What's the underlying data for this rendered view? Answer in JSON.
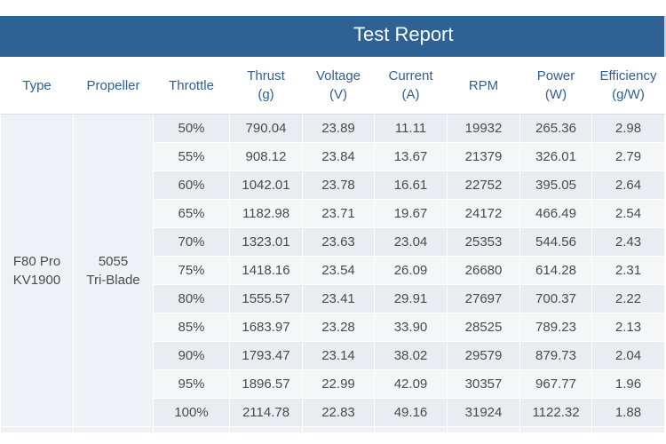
{
  "report": {
    "title": "Test Report"
  },
  "headers": [
    {
      "line1": "Type",
      "line2": ""
    },
    {
      "line1": "Propeller",
      "line2": ""
    },
    {
      "line1": "Throttle",
      "line2": ""
    },
    {
      "line1": "Thrust",
      "line2": "(g)"
    },
    {
      "line1": "Voltage",
      "line2": "(V)"
    },
    {
      "line1": "Current",
      "line2": "(A)"
    },
    {
      "line1": "RPM",
      "line2": ""
    },
    {
      "line1": "Power",
      "line2": "(W)"
    },
    {
      "line1": "Efficiency",
      "line2": "(g/W)"
    }
  ],
  "motor": {
    "type_line1": "F80 Pro",
    "type_line2": "KV1900",
    "prop_line1": "5055",
    "prop_line2": "Tri-Blade"
  },
  "rows": [
    {
      "throttle": "50%",
      "thrust": "790.04",
      "voltage": "23.89",
      "current": "11.11",
      "rpm": "19932",
      "power": "265.36",
      "efficiency": "2.98"
    },
    {
      "throttle": "55%",
      "thrust": "908.12",
      "voltage": "23.84",
      "current": "13.67",
      "rpm": "21379",
      "power": "326.01",
      "efficiency": "2.79"
    },
    {
      "throttle": "60%",
      "thrust": "1042.01",
      "voltage": "23.78",
      "current": "16.61",
      "rpm": "22752",
      "power": "395.05",
      "efficiency": "2.64"
    },
    {
      "throttle": "65%",
      "thrust": "1182.98",
      "voltage": "23.71",
      "current": "19.67",
      "rpm": "24172",
      "power": "466.49",
      "efficiency": "2.54"
    },
    {
      "throttle": "70%",
      "thrust": "1323.01",
      "voltage": "23.63",
      "current": "23.04",
      "rpm": "25353",
      "power": "544.56",
      "efficiency": "2.43"
    },
    {
      "throttle": "75%",
      "thrust": "1418.16",
      "voltage": "23.54",
      "current": "26.09",
      "rpm": "26680",
      "power": "614.28",
      "efficiency": "2.31"
    },
    {
      "throttle": "80%",
      "thrust": "1555.57",
      "voltage": "23.41",
      "current": "29.91",
      "rpm": "27697",
      "power": "700.37",
      "efficiency": "2.22"
    },
    {
      "throttle": "85%",
      "thrust": "1683.97",
      "voltage": "23.28",
      "current": "33.90",
      "rpm": "28525",
      "power": "789.23",
      "efficiency": "2.13"
    },
    {
      "throttle": "90%",
      "thrust": "1793.47",
      "voltage": "23.14",
      "current": "38.02",
      "rpm": "29579",
      "power": "879.73",
      "efficiency": "2.04"
    },
    {
      "throttle": "95%",
      "thrust": "1896.57",
      "voltage": "22.99",
      "current": "42.09",
      "rpm": "30357",
      "power": "967.77",
      "efficiency": "1.96"
    },
    {
      "throttle": "100%",
      "thrust": "2114.78",
      "voltage": "22.83",
      "current": "49.16",
      "rpm": "31924",
      "power": "1122.32",
      "efficiency": "1.88"
    }
  ]
}
